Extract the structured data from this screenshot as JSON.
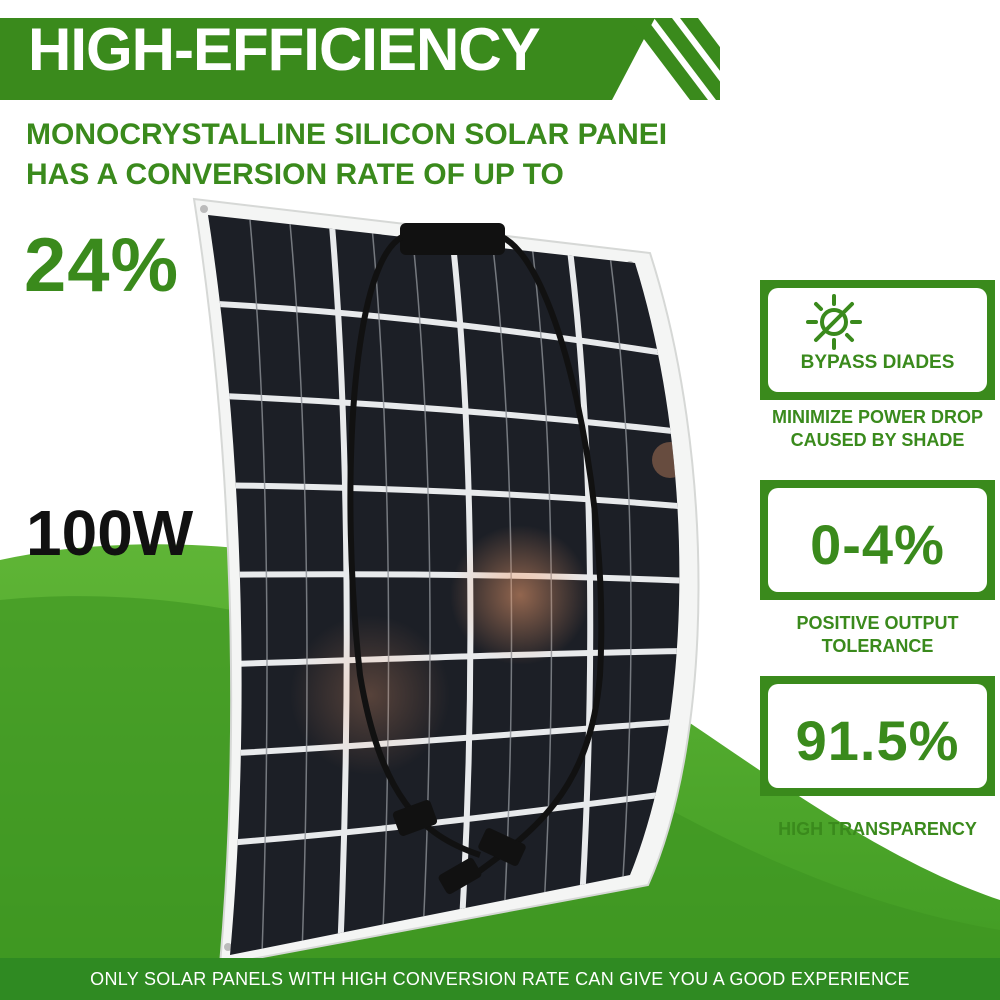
{
  "header": {
    "title": "HIGH-EFFICIENCY"
  },
  "intro": {
    "line1": "MONOCRYSTALLINE SILICON SOLAR PANEI",
    "line2": "HAS A CONVERSION RATE OF UP TO",
    "rate": "24%"
  },
  "product": {
    "wattage": "100W"
  },
  "features": [
    {
      "label": "BYPASS DIADES",
      "caption": "MINIMIZE POWER DROP CAUSED BY SHADE",
      "icon": "sun-icon"
    },
    {
      "value": "0-4%",
      "caption": "POSITIVE OUTPUT TOLERANCE"
    },
    {
      "value": "91.5%",
      "caption": "HIGH TRANSPARENCY"
    }
  ],
  "footer": {
    "text": "ONLY SOLAR PANELS WITH HIGH CONVERSION RATE CAN GIVE YOU A GOOD EXPERIENCE"
  },
  "colors": {
    "brand_green": "#3a8a1c",
    "footer_green": "#2f8a22",
    "cell_dark": "#1c1f26"
  }
}
